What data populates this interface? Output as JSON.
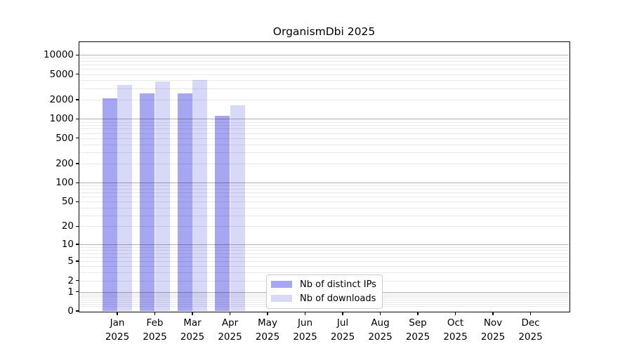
{
  "chart_data": {
    "type": "bar",
    "title": "OrganismDbi 2025",
    "y_scale": "log10(1+x)",
    "categories": [
      "Jan",
      "Feb",
      "Mar",
      "Apr",
      "May",
      "Jun",
      "Jul",
      "Aug",
      "Sep",
      "Oct",
      "Nov",
      "Dec"
    ],
    "category_year": "2025",
    "series": [
      {
        "name": "Nb of distinct IPs",
        "color": "#a6a6f2",
        "values": [
          2100,
          2500,
          2500,
          1130,
          null,
          null,
          null,
          null,
          null,
          null,
          null,
          null
        ]
      },
      {
        "name": "Nb of downloads",
        "color": "#d8d8f8",
        "values": [
          3400,
          3800,
          4000,
          1630,
          null,
          null,
          null,
          null,
          null,
          null,
          null,
          null
        ]
      }
    ],
    "y_ticks": [
      0,
      1,
      2,
      5,
      10,
      20,
      50,
      100,
      200,
      500,
      1000,
      2000,
      5000,
      10000
    ],
    "y_major_gridlines": [
      1,
      10,
      100,
      1000,
      10000
    ],
    "ylim": [
      0,
      15800
    ],
    "grid": "horizontal, log minor + major",
    "legend_position": "inside lower-center-left",
    "frame_color": "#0a0a0a",
    "background_color": "#ffffff"
  }
}
